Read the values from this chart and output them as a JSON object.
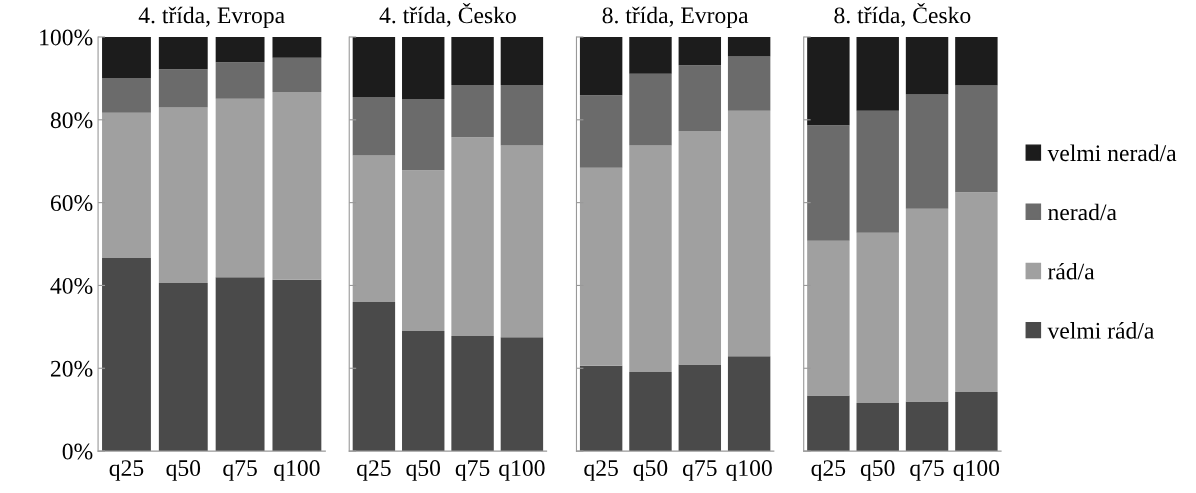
{
  "chart_data": [
    {
      "type": "bar",
      "stacked": true,
      "title": "4. třída, Evropa",
      "categories": [
        "q25",
        "q50",
        "q75",
        "q100"
      ],
      "ylim": [
        0,
        100
      ],
      "yticks": [
        {
          "value": 0,
          "label": "0%"
        },
        {
          "value": 20,
          "label": "20%"
        },
        {
          "value": 40,
          "label": "40%"
        },
        {
          "value": 60,
          "label": "60%"
        },
        {
          "value": 80,
          "label": "80%"
        },
        {
          "value": 100,
          "label": "100%"
        }
      ],
      "series": [
        {
          "color": "#4a4a4a",
          "values": [
            46.6,
            40.6,
            42.0,
            41.4
          ]
        },
        {
          "color": "#a0a0a0",
          "values": [
            35.1,
            42.4,
            43.1,
            45.3
          ]
        },
        {
          "color": "#6b6b6b",
          "values": [
            8.4,
            9.2,
            8.8,
            8.3
          ]
        },
        {
          "color": "#1c1c1c",
          "values": [
            9.9,
            7.8,
            6.1,
            5.0
          ]
        }
      ]
    },
    {
      "type": "bar",
      "stacked": true,
      "title": "4. třída, Česko",
      "categories": [
        "q25",
        "q50",
        "q75",
        "q100"
      ],
      "ylim": [
        0,
        100
      ],
      "yticks": [
        0,
        20,
        40,
        60,
        80,
        100
      ],
      "tick_labels": "x",
      "series": [
        {
          "color": "#4a4a4a",
          "values": [
            36.0,
            29.0,
            27.8,
            27.5
          ]
        },
        {
          "color": "#a0a0a0",
          "values": [
            35.4,
            38.8,
            48.0,
            46.3
          ]
        },
        {
          "color": "#6b6b6b",
          "values": [
            14.1,
            17.2,
            12.6,
            14.6
          ]
        },
        {
          "color": "#1c1c1c",
          "values": [
            14.5,
            15.0,
            11.6,
            11.6
          ]
        }
      ]
    },
    {
      "type": "bar",
      "stacked": true,
      "title": "8. třída, Evropa",
      "categories": [
        "q25",
        "q50",
        "q75",
        "q100"
      ],
      "ylim": [
        0,
        100
      ],
      "yticks": [
        0,
        20,
        40,
        60,
        80,
        100
      ],
      "tick_labels": "x",
      "series": [
        {
          "color": "#4a4a4a",
          "values": [
            20.6,
            19.1,
            20.9,
            22.9
          ]
        },
        {
          "color": "#a0a0a0",
          "values": [
            47.8,
            54.7,
            56.4,
            59.3
          ]
        },
        {
          "color": "#6b6b6b",
          "values": [
            17.5,
            17.3,
            15.9,
            13.1
          ]
        },
        {
          "color": "#1c1c1c",
          "values": [
            14.1,
            8.9,
            6.8,
            4.7
          ]
        }
      ]
    },
    {
      "type": "bar",
      "stacked": true,
      "title": "8. třída, Česko",
      "categories": [
        "q25",
        "q50",
        "q75",
        "q100"
      ],
      "ylim": [
        0,
        100
      ],
      "yticks": [
        0,
        20,
        40,
        60,
        80,
        100
      ],
      "tick_labels": "x",
      "legend": "right",
      "series": [
        {
          "name": "velmi rád/a",
          "color": "#4a4a4a",
          "values": [
            13.4,
            11.6,
            12.0,
            14.3
          ]
        },
        {
          "name": "rád/a",
          "color": "#a0a0a0",
          "values": [
            37.4,
            41.1,
            46.5,
            48.2
          ]
        },
        {
          "name": "nerad/a",
          "color": "#6b6b6b",
          "values": [
            27.9,
            29.5,
            27.6,
            25.8
          ]
        },
        {
          "name": "velmi nerad/a",
          "color": "#1c1c1c",
          "values": [
            21.3,
            17.8,
            13.9,
            11.7
          ]
        }
      ]
    }
  ]
}
